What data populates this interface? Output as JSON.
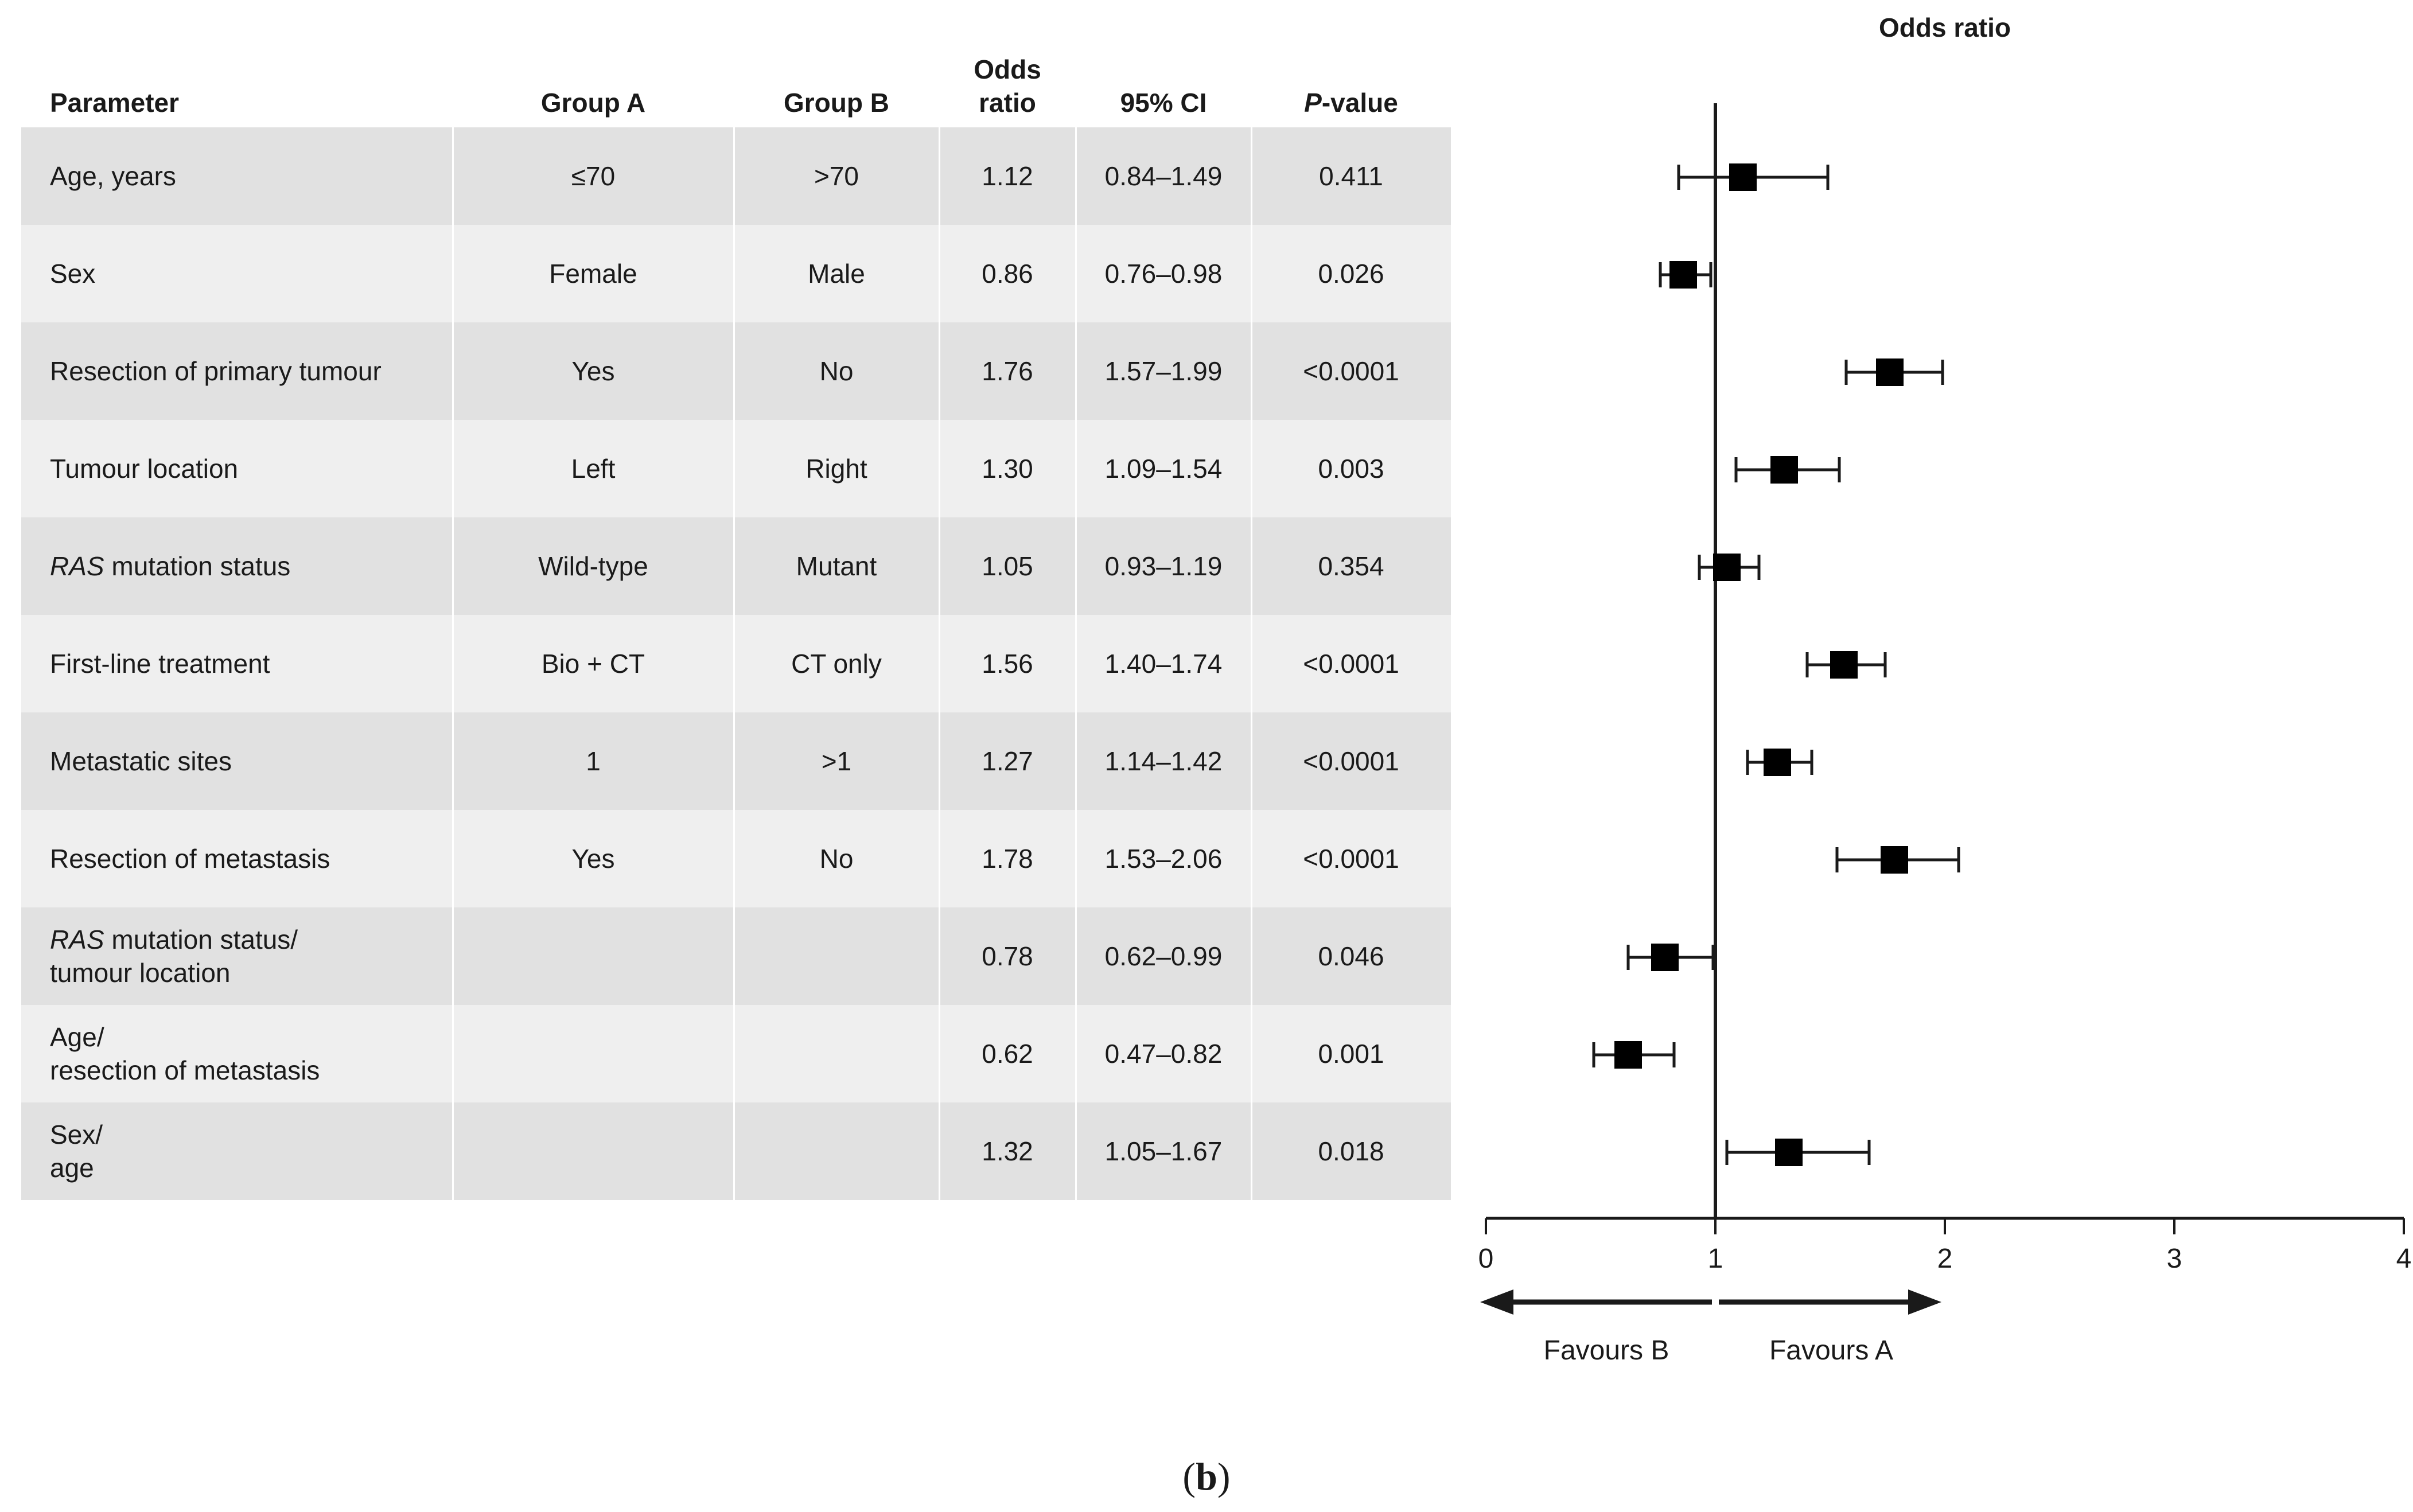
{
  "table": {
    "headers": {
      "parameter": "Parameter",
      "group_a": "Group A",
      "group_b": "Group B",
      "odds_ratio_line1": "Odds",
      "odds_ratio_line2": "ratio",
      "ci": "95% CI",
      "p_italic": "P",
      "p_rest": "-value"
    },
    "rows": [
      {
        "param_italic": "",
        "param": "Age, years",
        "param_line2": "",
        "group_a": "≤70",
        "group_b": ">70",
        "or": "1.12",
        "ci": "0.84–1.49",
        "p": "0.411"
      },
      {
        "param_italic": "",
        "param": "Sex",
        "param_line2": "",
        "group_a": "Female",
        "group_b": "Male",
        "or": "0.86",
        "ci": "0.76–0.98",
        "p": "0.026"
      },
      {
        "param_italic": "",
        "param": "Resection of primary tumour",
        "param_line2": "",
        "group_a": "Yes",
        "group_b": "No",
        "or": "1.76",
        "ci": "1.57–1.99",
        "p": "<0.0001"
      },
      {
        "param_italic": "",
        "param": "Tumour location",
        "param_line2": "",
        "group_a": "Left",
        "group_b": "Right",
        "or": "1.30",
        "ci": "1.09–1.54",
        "p": "0.003"
      },
      {
        "param_italic": "RAS",
        "param": " mutation status",
        "param_line2": "",
        "group_a": "Wild-type",
        "group_b": "Mutant",
        "or": "1.05",
        "ci": "0.93–1.19",
        "p": "0.354"
      },
      {
        "param_italic": "",
        "param": "First-line treatment",
        "param_line2": "",
        "group_a": "Bio + CT",
        "group_b": "CT only",
        "or": "1.56",
        "ci": "1.40–1.74",
        "p": "<0.0001"
      },
      {
        "param_italic": "",
        "param": "Metastatic sites",
        "param_line2": "",
        "group_a": "1",
        "group_b": ">1",
        "or": "1.27",
        "ci": "1.14–1.42",
        "p": "<0.0001"
      },
      {
        "param_italic": "",
        "param": "Resection of metastasis",
        "param_line2": "",
        "group_a": "Yes",
        "group_b": "No",
        "or": "1.78",
        "ci": "1.53–2.06",
        "p": "<0.0001"
      },
      {
        "param_italic": "RAS",
        "param": " mutation status/",
        "param_line2": "tumour location",
        "group_a": "",
        "group_b": "",
        "or": "0.78",
        "ci": "0.62–0.99",
        "p": "0.046"
      },
      {
        "param_italic": "",
        "param": "Age/",
        "param_line2": "resection of metastasis",
        "group_a": "",
        "group_b": "",
        "or": "0.62",
        "ci": "0.47–0.82",
        "p": "0.001"
      },
      {
        "param_italic": "",
        "param": "Sex/",
        "param_line2": "age",
        "group_a": "",
        "group_b": "",
        "or": "1.32",
        "ci": "1.05–1.67",
        "p": "0.018"
      }
    ]
  },
  "chart_data": {
    "type": "forest",
    "title": "Odds ratio",
    "xlim": [
      0,
      4
    ],
    "x_ticks": [
      "0",
      "1",
      "2",
      "3",
      "4"
    ],
    "reference_line": 1,
    "left_arrow_label": "Favours B",
    "right_arrow_label": "Favours A",
    "points": [
      {
        "label": "Age, years",
        "or": 1.12,
        "lo": 0.84,
        "hi": 1.49
      },
      {
        "label": "Sex",
        "or": 0.86,
        "lo": 0.76,
        "hi": 0.98
      },
      {
        "label": "Resection of primary tumour",
        "or": 1.76,
        "lo": 1.57,
        "hi": 1.99
      },
      {
        "label": "Tumour location",
        "or": 1.3,
        "lo": 1.09,
        "hi": 1.54
      },
      {
        "label": "RAS mutation status",
        "or": 1.05,
        "lo": 0.93,
        "hi": 1.19
      },
      {
        "label": "First-line treatment",
        "or": 1.56,
        "lo": 1.4,
        "hi": 1.74
      },
      {
        "label": "Metastatic sites",
        "or": 1.27,
        "lo": 1.14,
        "hi": 1.42
      },
      {
        "label": "Resection of metastasis",
        "or": 1.78,
        "lo": 1.53,
        "hi": 2.06
      },
      {
        "label": "RAS mutation status/tumour location",
        "or": 0.78,
        "lo": 0.62,
        "hi": 0.99
      },
      {
        "label": "Age/resection of metastasis",
        "or": 0.62,
        "lo": 0.47,
        "hi": 0.82
      },
      {
        "label": "Sex/age",
        "or": 1.32,
        "lo": 1.05,
        "hi": 1.67
      }
    ]
  },
  "caption": {
    "open": "(",
    "letter": "b",
    "close": ")"
  }
}
